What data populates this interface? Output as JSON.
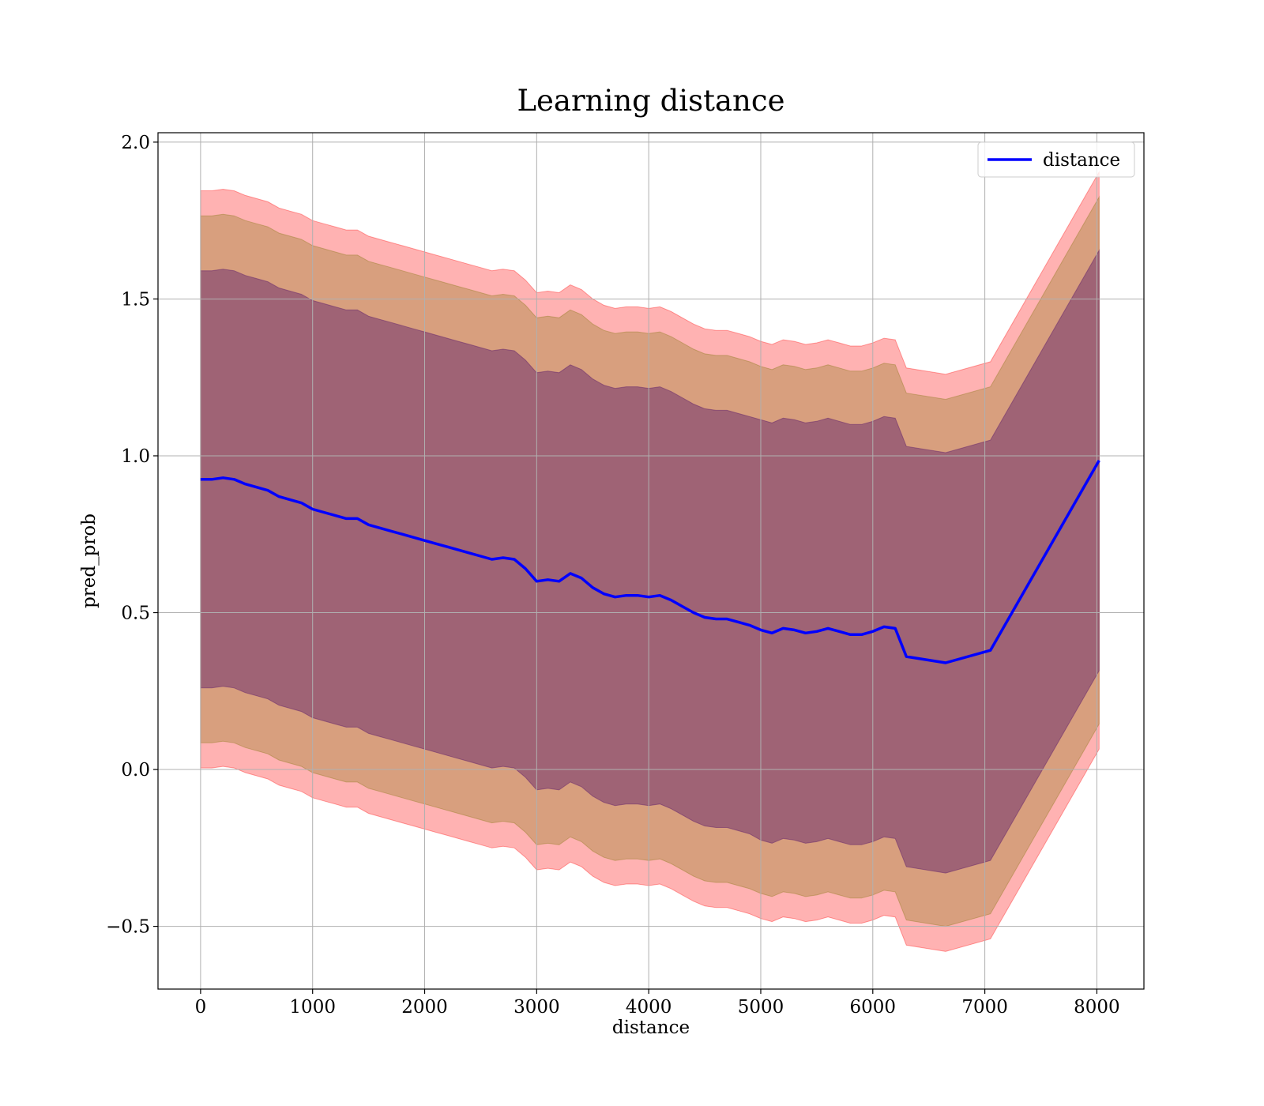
{
  "chart_data": {
    "type": "line",
    "title": "Learning distance",
    "xlabel": "distance",
    "ylabel": "pred_prob",
    "xlim": [
      -380,
      8420
    ],
    "ylim": [
      -0.7,
      2.03
    ],
    "xticks": [
      0,
      1000,
      2000,
      3000,
      4000,
      5000,
      6000,
      7000,
      8000
    ],
    "xtick_labels": [
      "0",
      "1000",
      "2000",
      "3000",
      "4000",
      "5000",
      "6000",
      "7000",
      "8000"
    ],
    "yticks": [
      -0.5,
      0.0,
      0.5,
      1.0,
      1.5,
      2.0
    ],
    "ytick_labels": [
      "−0.5",
      "0.0",
      "0.5",
      "1.0",
      "1.5",
      "2.0"
    ],
    "grid": true,
    "legend": {
      "position": "top-right",
      "entries": [
        "distance"
      ]
    },
    "colors": {
      "line": "#0000ff",
      "band_outer": "#ff0000",
      "band_middle": "#8f7a1e",
      "band_inner": "#5a1a6a",
      "grid": "#b0b0b0"
    },
    "series": [
      {
        "name": "distance",
        "x": [
          0,
          100,
          200,
          300,
          400,
          500,
          600,
          700,
          800,
          900,
          1000,
          1100,
          1200,
          1300,
          1400,
          1500,
          1600,
          1700,
          1800,
          1900,
          2000,
          2100,
          2200,
          2300,
          2400,
          2500,
          2600,
          2700,
          2800,
          2900,
          3000,
          3100,
          3200,
          3300,
          3400,
          3500,
          3600,
          3700,
          3800,
          3900,
          4000,
          4100,
          4200,
          4300,
          4400,
          4500,
          4600,
          4700,
          4800,
          4900,
          5000,
          5100,
          5200,
          5300,
          5400,
          5500,
          5600,
          5700,
          5800,
          5900,
          6000,
          6100,
          6200,
          6300,
          6650,
          7050,
          8020
        ],
        "y": [
          0.925,
          0.925,
          0.93,
          0.925,
          0.91,
          0.9,
          0.89,
          0.87,
          0.86,
          0.85,
          0.83,
          0.82,
          0.81,
          0.8,
          0.8,
          0.78,
          0.77,
          0.76,
          0.75,
          0.74,
          0.73,
          0.72,
          0.71,
          0.7,
          0.69,
          0.68,
          0.67,
          0.675,
          0.67,
          0.64,
          0.6,
          0.605,
          0.6,
          0.625,
          0.61,
          0.58,
          0.56,
          0.55,
          0.555,
          0.555,
          0.55,
          0.555,
          0.54,
          0.52,
          0.5,
          0.485,
          0.48,
          0.48,
          0.47,
          0.46,
          0.445,
          0.435,
          0.45,
          0.445,
          0.435,
          0.44,
          0.45,
          0.44,
          0.43,
          0.43,
          0.44,
          0.455,
          0.45,
          0.36,
          0.34,
          0.38,
          0.985
        ],
        "band_inner_half_width": [
          0.665,
          0.665,
          0.665,
          0.665,
          0.665,
          0.665,
          0.665,
          0.665,
          0.665,
          0.665,
          0.665,
          0.665,
          0.665,
          0.665,
          0.665,
          0.665,
          0.665,
          0.665,
          0.665,
          0.665,
          0.665,
          0.665,
          0.665,
          0.665,
          0.665,
          0.665,
          0.665,
          0.665,
          0.665,
          0.665,
          0.665,
          0.665,
          0.665,
          0.665,
          0.665,
          0.665,
          0.665,
          0.665,
          0.665,
          0.665,
          0.665,
          0.665,
          0.665,
          0.665,
          0.665,
          0.665,
          0.665,
          0.665,
          0.665,
          0.665,
          0.67,
          0.67,
          0.67,
          0.67,
          0.67,
          0.67,
          0.67,
          0.67,
          0.67,
          0.67,
          0.67,
          0.67,
          0.67,
          0.67,
          0.67,
          0.67,
          0.67
        ],
        "band_middle_half_width": [
          0.84,
          0.84,
          0.84,
          0.84,
          0.84,
          0.84,
          0.84,
          0.84,
          0.84,
          0.84,
          0.84,
          0.84,
          0.84,
          0.84,
          0.84,
          0.84,
          0.84,
          0.84,
          0.84,
          0.84,
          0.84,
          0.84,
          0.84,
          0.84,
          0.84,
          0.84,
          0.84,
          0.84,
          0.84,
          0.84,
          0.84,
          0.84,
          0.84,
          0.84,
          0.84,
          0.84,
          0.84,
          0.84,
          0.84,
          0.84,
          0.84,
          0.84,
          0.84,
          0.84,
          0.84,
          0.84,
          0.84,
          0.84,
          0.84,
          0.84,
          0.84,
          0.84,
          0.84,
          0.84,
          0.84,
          0.84,
          0.84,
          0.84,
          0.84,
          0.84,
          0.84,
          0.84,
          0.84,
          0.84,
          0.84,
          0.84,
          0.84
        ],
        "band_outer_half_width": [
          0.92,
          0.92,
          0.92,
          0.92,
          0.92,
          0.92,
          0.92,
          0.92,
          0.92,
          0.92,
          0.92,
          0.92,
          0.92,
          0.92,
          0.92,
          0.92,
          0.92,
          0.92,
          0.92,
          0.92,
          0.92,
          0.92,
          0.92,
          0.92,
          0.92,
          0.92,
          0.92,
          0.92,
          0.92,
          0.92,
          0.92,
          0.92,
          0.92,
          0.92,
          0.92,
          0.92,
          0.92,
          0.92,
          0.92,
          0.92,
          0.92,
          0.92,
          0.92,
          0.92,
          0.92,
          0.92,
          0.92,
          0.92,
          0.92,
          0.92,
          0.92,
          0.92,
          0.92,
          0.92,
          0.92,
          0.92,
          0.92,
          0.92,
          0.92,
          0.92,
          0.92,
          0.92,
          0.92,
          0.92,
          0.92,
          0.92,
          0.92
        ]
      }
    ]
  }
}
